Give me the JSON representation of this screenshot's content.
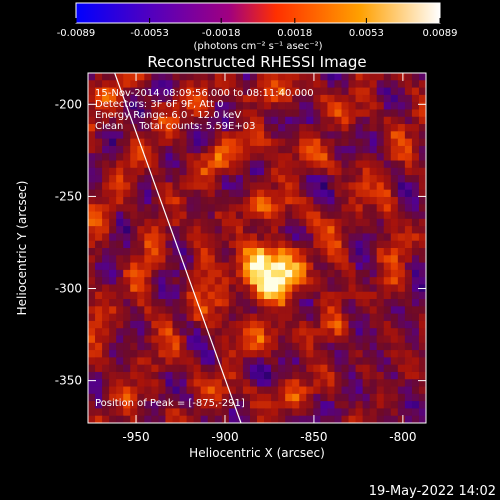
{
  "chart_data": {
    "type": "heatmap",
    "title": "Reconstructed RHESSI Image",
    "xlabel": "Heliocentric X (arcsec)",
    "ylabel": "Heliocentric Y (arcsec)",
    "xlim": [
      -977,
      -787
    ],
    "ylim": [
      -373,
      -183
    ],
    "x_ticks": [
      -950,
      -900,
      -850,
      -800
    ],
    "x_tick_labels": [
      "-950",
      "-900",
      "-850",
      "-800"
    ],
    "y_ticks": [
      -200,
      -250,
      -300,
      -350
    ],
    "y_tick_labels": [
      "-200",
      "-250",
      "-300",
      "-350"
    ],
    "colorbar": {
      "range": [
        -0.0089,
        0.0089
      ],
      "ticks": [
        -0.0089,
        -0.0053,
        -0.0018,
        0.0018,
        0.0053,
        0.0089
      ],
      "tick_labels": [
        "-0.0089",
        "-0.0053",
        "-0.0018",
        "0.0018",
        "0.0053",
        "0.0089"
      ],
      "unit_label": "(photons cm⁻² s⁻¹ asec⁻²)",
      "colors": [
        "#0000ff",
        "#5000c0",
        "#a00080",
        "#ff3000",
        "#ffa000",
        "#ffffff"
      ]
    },
    "annotations": [
      "15-Nov-2014 08:09:56.000 to 08:11:40.000",
      "Detectors: 3F 6F 9F, Att 0",
      "Energy Range: 6.0 - 12.0 keV",
      "Clean     Total counts: 5.59E+03"
    ],
    "peak_label": "Position of Peak = [-875,-291]",
    "peak": {
      "x": -875,
      "y": -291
    },
    "limb_line": [
      {
        "x": -962,
        "y": -183
      },
      {
        "x": -891,
        "y": -373
      }
    ],
    "grid": false
  },
  "footer": {
    "timestamp": "19-May-2022 14:02"
  }
}
